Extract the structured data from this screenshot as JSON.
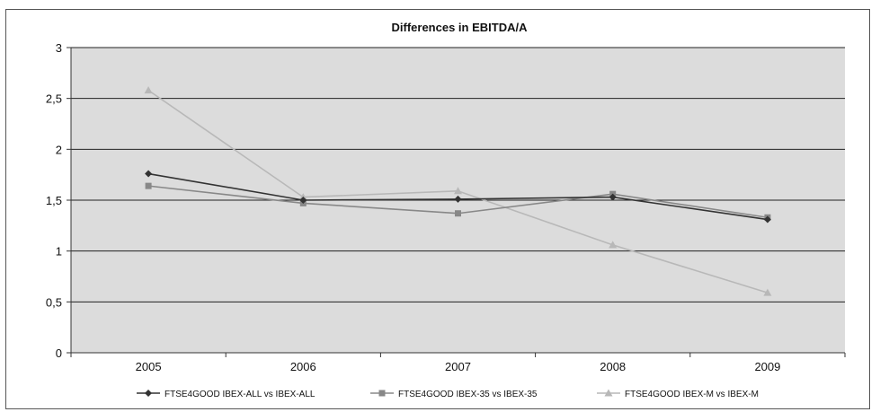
{
  "chart_data": {
    "type": "line",
    "title": "Differences in EBITDA/A",
    "xlabel": "",
    "ylabel": "",
    "categories": [
      "2005",
      "2006",
      "2007",
      "2008",
      "2009"
    ],
    "ylim": [
      0,
      3
    ],
    "yticks": [
      0,
      0.5,
      1,
      1.5,
      2,
      2.5,
      3
    ],
    "ytick_labels": [
      "0",
      "0,5",
      "1",
      "1,5",
      "2",
      "2,5",
      "3"
    ],
    "grid": true,
    "legend_position": "bottom",
    "plot_background": "#dcdcdc",
    "series": [
      {
        "name": "FTSE4GOOD IBEX-ALL vs IBEX-ALL",
        "values": [
          1.76,
          1.5,
          1.51,
          1.53,
          1.31
        ],
        "color": "#333333",
        "marker": "diamond"
      },
      {
        "name": "FTSE4GOOD IBEX-35 vs IBEX-35",
        "values": [
          1.64,
          1.47,
          1.37,
          1.56,
          1.33
        ],
        "color": "#888888",
        "marker": "square"
      },
      {
        "name": "FTSE4GOOD IBEX-M vs IBEX-M",
        "values": [
          2.58,
          1.53,
          1.59,
          1.06,
          0.59
        ],
        "color": "#b8b8b8",
        "marker": "triangle"
      }
    ]
  }
}
